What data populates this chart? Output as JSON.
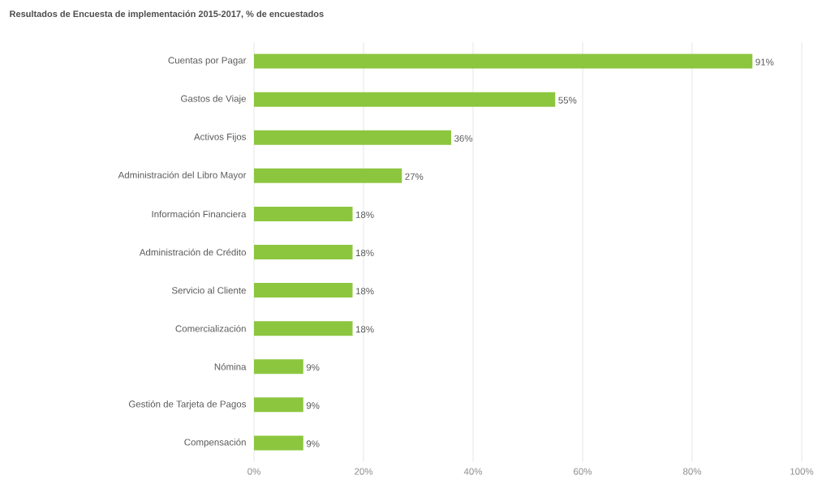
{
  "chart_data": {
    "type": "bar",
    "orientation": "horizontal",
    "title": "Resultados de Encuesta de implementación 2015-2017, % de encuestados",
    "categories": [
      "Cuentas por Pagar",
      "Gastos de Viaje",
      "Activos Fijos",
      "Administración del Libro Mayor",
      "Información Financiera",
      "Administración de Crédito",
      "Servicio al Cliente",
      "Comercialización",
      "Nómina",
      "Gestión de Tarjeta de Pagos",
      "Compensación"
    ],
    "values": [
      91,
      55,
      36,
      27,
      18,
      18,
      18,
      18,
      9,
      9,
      9
    ],
    "value_labels": [
      "91%",
      "55%",
      "36%",
      "27%",
      "18%",
      "18%",
      "18%",
      "18%",
      "9%",
      "9%",
      "9%"
    ],
    "color": "#8cc63f",
    "xlim": [
      0,
      100
    ],
    "xticks": [
      {
        "value": 0,
        "label": "0%"
      },
      {
        "value": 20,
        "label": "20%"
      },
      {
        "value": 40,
        "label": "40%"
      },
      {
        "value": 60,
        "label": "60%"
      },
      {
        "value": 80,
        "label": "80%"
      },
      {
        "value": 100,
        "label": "100%"
      }
    ],
    "grid": "x"
  }
}
